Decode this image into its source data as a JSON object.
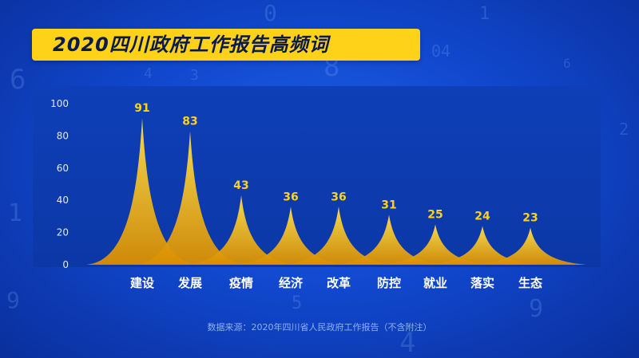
{
  "title": "2020四川政府工作报告高频词",
  "source_note": "数据来源：2020年四川省人民政府工作报告（不含附注）",
  "colors": {
    "accent": "#ffd21a",
    "peak_top": "#ffe14a",
    "peak_bottom": "#d98e00",
    "label": "#ffd21a",
    "axis_text": "#dfe8ff"
  },
  "chart_data": {
    "type": "area",
    "title": "2020四川政府工作报告高频词",
    "xlabel": "",
    "ylabel": "",
    "categories": [
      "建设",
      "发展",
      "疫情",
      "经济",
      "改革",
      "防控",
      "就业",
      "落实",
      "生态"
    ],
    "values": [
      91,
      83,
      43,
      36,
      36,
      31,
      25,
      24,
      23
    ],
    "yticks": [
      0,
      20,
      40,
      60,
      80,
      100
    ],
    "ylim": [
      0,
      100
    ],
    "grid": false,
    "legend": "none"
  }
}
